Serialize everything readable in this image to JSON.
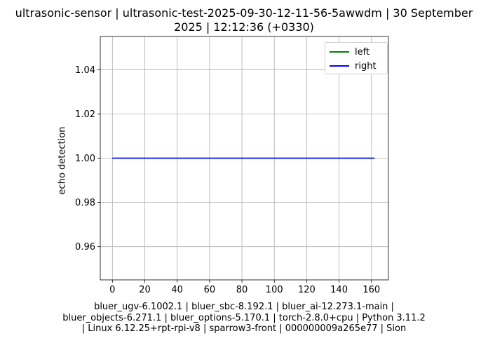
{
  "chart_data": {
    "type": "line",
    "title_lines": [
      "ultrasonic-sensor | ultrasonic-test-2025-09-30-12-11-56-5awwdm | 30 September",
      "2025 | 12:12:36 (+0330)"
    ],
    "xlabel_lines": [
      "bluer_ugv-6.1002.1 | bluer_sbc-8.192.1 | bluer_ai-12.273.1-main |",
      "bluer_objects-6.271.1 | bluer_options-5.170.1 | torch-2.8.0+cpu | Python 3.11.2",
      "| Linux 6.12.25+rpt-rpi-v8 | sparrow3-front | 000000009a265e77 | Sion"
    ],
    "ylabel": "echo detection",
    "xlim": [
      -7.5,
      170.5
    ],
    "ylim": [
      0.945,
      1.055
    ],
    "xticks": [
      0,
      20,
      40,
      60,
      80,
      100,
      120,
      140,
      160
    ],
    "yticks": [
      0.96,
      0.98,
      1.0,
      1.02,
      1.04
    ],
    "ytick_labels": [
      "0.96",
      "0.98",
      "1.00",
      "1.02",
      "1.04"
    ],
    "grid": true,
    "legend_position": "top-right",
    "series": [
      {
        "name": "left",
        "color": "#008000",
        "x": [
          0,
          162
        ],
        "y": [
          1.0,
          1.0
        ]
      },
      {
        "name": "right",
        "color": "#0000ff",
        "x": [
          0,
          162
        ],
        "y": [
          1.0,
          1.0
        ]
      }
    ]
  }
}
